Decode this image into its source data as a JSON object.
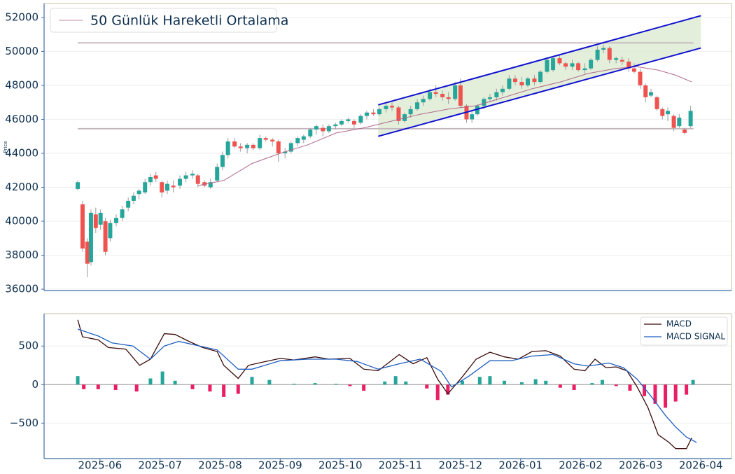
{
  "chart_data": [
    {
      "type": "candlestick",
      "ylabel": "Price",
      "x": [
        5.63,
        5.71,
        5.79,
        5.85,
        5.93,
        6.01,
        6.09,
        6.17,
        6.27,
        6.37,
        6.47,
        6.56,
        6.65,
        6.75,
        6.84,
        6.93,
        7.03,
        7.12,
        7.22,
        7.33,
        7.43,
        7.54,
        7.63,
        7.74,
        7.84,
        7.95,
        8.04,
        8.13,
        8.24,
        8.34,
        8.45,
        8.55,
        8.66,
        8.76,
        8.87,
        8.97,
        9.08,
        9.18,
        9.29,
        9.39,
        9.5,
        9.6,
        9.71,
        9.81,
        9.92,
        10.02,
        10.13,
        10.23,
        10.34,
        10.44,
        10.55,
        10.65,
        10.76,
        10.86,
        10.97,
        11.07,
        11.17,
        11.28,
        11.38,
        11.49,
        11.59,
        11.7,
        11.8,
        11.91,
        12.0,
        12.1,
        12.19,
        12.28,
        12.39,
        12.49,
        12.6,
        12.7,
        12.81,
        12.91,
        13.02,
        13.12,
        13.23,
        13.33,
        13.44,
        13.54,
        13.65,
        13.75,
        13.86,
        13.96,
        14.07,
        14.17,
        14.28,
        14.38,
        14.48,
        14.59,
        14.69,
        14.8,
        14.89,
        14.99,
        15.08,
        15.17,
        15.27,
        15.36,
        15.45,
        15.55,
        15.64,
        15.73,
        15.83
      ],
      "open": [
        41900,
        41000,
        38800,
        37600,
        40400,
        39800,
        40000,
        39000,
        39900,
        40200,
        40800,
        41200,
        41600,
        41700,
        42300,
        42700,
        42300,
        41800,
        42100,
        42100,
        42500,
        42700,
        42700,
        42300,
        42000,
        42400,
        43200,
        43900,
        44700,
        44400,
        44300,
        44500,
        44300,
        44900,
        44800,
        44700,
        44000,
        44100,
        44600,
        44800,
        45000,
        45400,
        45500,
        45300,
        45600,
        45700,
        45900,
        45900,
        45800,
        46200,
        46400,
        46300,
        46600,
        46800,
        46700,
        45900,
        46300,
        46600,
        47000,
        47200,
        47600,
        47500,
        47300,
        47200,
        48000,
        46800,
        46000,
        46300,
        46800,
        47200,
        47300,
        47600,
        47800,
        48400,
        48200,
        48000,
        48400,
        48200,
        48800,
        48900,
        49600,
        49300,
        49100,
        49300,
        48900,
        49000,
        49500,
        50100,
        50200,
        49500,
        49500,
        49400,
        49000,
        48800,
        48000,
        47400,
        47300,
        46600,
        46300,
        46200,
        45600,
        45400,
        45600
      ],
      "high": [
        42400,
        41200,
        39000,
        40700,
        40800,
        40700,
        40200,
        40100,
        40400,
        40900,
        41400,
        41700,
        41900,
        42500,
        42800,
        42900,
        42400,
        42400,
        42400,
        42700,
        42900,
        43000,
        42800,
        42400,
        42500,
        43400,
        44100,
        44900,
        44900,
        44600,
        44600,
        44600,
        45100,
        45000,
        44900,
        44800,
        44300,
        44700,
        45000,
        45100,
        45500,
        45700,
        45700,
        45700,
        45800,
        46000,
        46100,
        46000,
        46300,
        46500,
        46600,
        46700,
        46900,
        47000,
        46800,
        46400,
        46800,
        47200,
        47400,
        47800,
        48000,
        47700,
        47600,
        48200,
        48400,
        46900,
        46500,
        46900,
        47300,
        47500,
        47800,
        48000,
        48600,
        48600,
        48500,
        48500,
        48600,
        48900,
        49600,
        49700,
        49800,
        49400,
        49500,
        49400,
        49300,
        49600,
        50300,
        50400,
        50300,
        49700,
        49700,
        49600,
        49300,
        49000,
        48100,
        47800,
        47400,
        46700,
        46700,
        46300,
        46300,
        45500,
        46800
      ],
      "low": [
        41800,
        38200,
        36700,
        37400,
        39300,
        39500,
        38000,
        38800,
        39700,
        40000,
        40600,
        41000,
        41300,
        41600,
        42100,
        42300,
        41400,
        41600,
        41700,
        41900,
        42300,
        42500,
        42000,
        42000,
        41900,
        42300,
        43000,
        43700,
        44300,
        44100,
        44000,
        44200,
        44200,
        44700,
        44400,
        43500,
        43700,
        44000,
        44400,
        44600,
        44900,
        45100,
        45000,
        45200,
        45400,
        45600,
        45800,
        45500,
        45700,
        46000,
        46200,
        46200,
        46400,
        46500,
        45700,
        45800,
        46100,
        46500,
        46800,
        47100,
        47300,
        47100,
        46900,
        47100,
        46700,
        45800,
        45800,
        46200,
        46600,
        47000,
        47100,
        47400,
        47700,
        48000,
        47800,
        47900,
        48000,
        48100,
        48700,
        48800,
        49200,
        48900,
        48900,
        48800,
        48700,
        48900,
        49400,
        49900,
        49300,
        49300,
        49200,
        48800,
        48700,
        47800,
        47000,
        47300,
        46500,
        46000,
        45900,
        45300,
        45500,
        45100,
        45500
      ],
      "close": [
        42300,
        38400,
        37500,
        40500,
        39600,
        40500,
        38200,
        39900,
        40200,
        40700,
        41200,
        41500,
        41800,
        42300,
        42600,
        42500,
        41700,
        42200,
        42000,
        42500,
        42700,
        42800,
        42200,
        42100,
        42300,
        43200,
        43900,
        44700,
        44400,
        44300,
        44500,
        44300,
        44900,
        44800,
        44700,
        44000,
        44100,
        44600,
        44900,
        45000,
        45400,
        45600,
        45300,
        45600,
        45700,
        45900,
        46000,
        45700,
        46200,
        46400,
        46300,
        46600,
        46800,
        46700,
        45900,
        46300,
        46600,
        47000,
        47200,
        47600,
        47500,
        47300,
        47200,
        48000,
        46800,
        46000,
        46300,
        46800,
        47200,
        47300,
        47600,
        47800,
        48400,
        48200,
        48000,
        48400,
        48200,
        48800,
        49500,
        49600,
        49300,
        49100,
        49300,
        48900,
        49000,
        49500,
        50100,
        50200,
        49500,
        49600,
        49400,
        49000,
        48800,
        48000,
        47300,
        47600,
        46600,
        46200,
        46500,
        45500,
        46100,
        45200,
        46500
      ],
      "up_color": "#26a69a",
      "down_color": "#ef5350",
      "ma": {
        "name": "50 Günlük Hareketli Ortalama",
        "color": "#b0688c",
        "x": [
          7.63,
          8.06,
          8.53,
          9.0,
          9.46,
          9.93,
          10.39,
          10.86,
          11.33,
          11.79,
          12.26,
          12.73,
          13.19,
          13.66,
          14.12,
          14.59,
          14.94,
          15.29,
          15.58,
          15.85
        ],
        "values": [
          42100,
          42400,
          43400,
          44000,
          44500,
          45200,
          45500,
          45900,
          46300,
          46600,
          46800,
          47300,
          47800,
          48200,
          48700,
          49000,
          49100,
          48900,
          48600,
          48200
        ]
      },
      "levels": [
        50500,
        45450
      ],
      "level_color": "#c5b5bd",
      "channel": {
        "x": [
          10.63,
          16.0
        ],
        "upper": [
          46850,
          52100
        ],
        "lower": [
          45000,
          50200
        ],
        "color": "#1010d0",
        "fill": "#dcebd2"
      },
      "xlim": [
        5.07,
        16.51
      ],
      "ylim": [
        35920,
        52820
      ],
      "yticks": [
        36000,
        38000,
        40000,
        42000,
        44000,
        46000,
        48000,
        50000,
        52000
      ],
      "grid": true,
      "legend": "upper left"
    },
    {
      "type": "macd",
      "series": [
        {
          "name": "MACD",
          "color": "#3b0a0a",
          "x": [
            5.63,
            5.71,
            5.97,
            6.14,
            6.43,
            6.66,
            6.84,
            7.07,
            7.25,
            7.48,
            7.71,
            7.95,
            8.06,
            8.3,
            8.47,
            8.76,
            9.0,
            9.23,
            9.58,
            9.81,
            10.16,
            10.39,
            10.63,
            10.98,
            11.21,
            11.44,
            11.62,
            11.79,
            12.03,
            12.26,
            12.49,
            12.73,
            12.96,
            13.19,
            13.42,
            13.66,
            13.89,
            14.07,
            14.24,
            14.42,
            14.59,
            14.77,
            14.94,
            15.12,
            15.29,
            15.47,
            15.58,
            15.76,
            15.85
          ],
          "values": [
            840,
            620,
            580,
            480,
            460,
            250,
            330,
            660,
            650,
            560,
            480,
            430,
            250,
            80,
            250,
            300,
            340,
            320,
            360,
            330,
            340,
            200,
            180,
            390,
            270,
            350,
            70,
            -120,
            100,
            330,
            420,
            360,
            330,
            430,
            440,
            370,
            200,
            180,
            330,
            220,
            230,
            180,
            -30,
            -300,
            -650,
            -750,
            -830,
            -830,
            -690
          ]
        },
        {
          "name": "MACD SIGNAL",
          "color": "#1f5fbf",
          "x": [
            5.63,
            5.97,
            6.2,
            6.55,
            6.84,
            7.07,
            7.31,
            7.6,
            7.95,
            8.3,
            8.53,
            9.0,
            9.46,
            9.93,
            10.28,
            10.63,
            10.98,
            11.33,
            11.68,
            11.85,
            12.14,
            12.49,
            12.84,
            13.19,
            13.54,
            13.89,
            14.12,
            14.47,
            14.71,
            14.94,
            15.17,
            15.41,
            15.58,
            15.76,
            15.93
          ],
          "values": [
            720,
            630,
            540,
            500,
            330,
            500,
            560,
            510,
            450,
            200,
            200,
            310,
            330,
            330,
            300,
            200,
            270,
            330,
            170,
            -30,
            110,
            310,
            310,
            370,
            390,
            270,
            240,
            280,
            220,
            70,
            -150,
            -400,
            -550,
            -680,
            -750
          ]
        }
      ],
      "histogram": {
        "up_color": "#26a69a",
        "down_color": "#e91e63",
        "x": [
          5.63,
          5.73,
          5.97,
          6.26,
          6.61,
          6.84,
          7.04,
          7.25,
          7.54,
          7.83,
          8.06,
          8.3,
          8.53,
          8.82,
          9.23,
          9.58,
          9.93,
          10.16,
          10.39,
          10.74,
          10.92,
          11.09,
          11.44,
          11.62,
          11.79,
          12.03,
          12.32,
          12.49,
          12.73,
          13.02,
          13.25,
          13.42,
          13.66,
          13.89,
          14.19,
          14.36,
          14.59,
          14.82,
          15.06,
          15.24,
          15.41,
          15.58,
          15.76,
          15.87
        ],
        "values": [
          110,
          -60,
          -60,
          -70,
          -90,
          80,
          170,
          50,
          -60,
          -90,
          -160,
          -120,
          100,
          60,
          10,
          20,
          10,
          -20,
          -80,
          40,
          110,
          40,
          -50,
          -200,
          -130,
          50,
          100,
          110,
          50,
          30,
          70,
          50,
          -40,
          -70,
          20,
          60,
          -20,
          -80,
          -150,
          -250,
          -300,
          -220,
          -130,
          60
        ]
      },
      "xlim": [
        5.07,
        16.51
      ],
      "ylim": [
        -960,
        920
      ],
      "xticks": [
        {
          "value": 6,
          "label": "2025-06"
        },
        {
          "value": 7,
          "label": "2025-07"
        },
        {
          "value": 8,
          "label": "2025-08"
        },
        {
          "value": 9,
          "label": "2025-09"
        },
        {
          "value": 10,
          "label": "2025-10"
        },
        {
          "value": 11,
          "label": "2025-11"
        },
        {
          "value": 12,
          "label": "2025-12"
        },
        {
          "value": 13,
          "label": "2026-01"
        },
        {
          "value": 14,
          "label": "2026-02"
        },
        {
          "value": 15,
          "label": "2026-03"
        },
        {
          "value": 16,
          "label": "2026-04"
        }
      ],
      "yticks": [
        {
          "value": -500,
          "label": "−500"
        },
        0,
        500
      ],
      "grid": true,
      "legend": "upper right"
    }
  ]
}
